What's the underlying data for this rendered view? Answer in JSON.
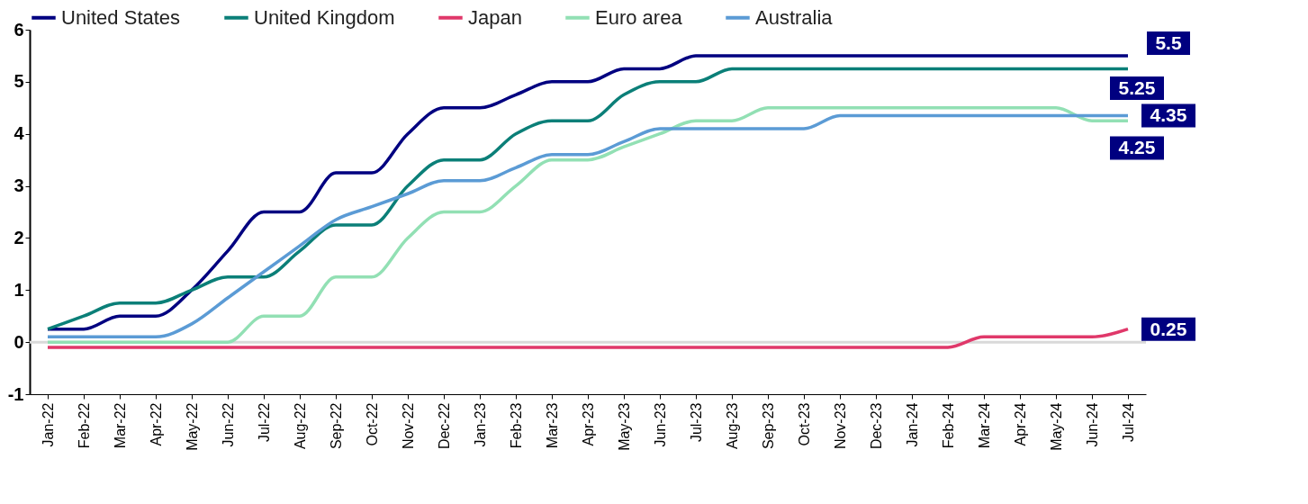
{
  "chart_data": {
    "type": "line",
    "categories": [
      "Jan-22",
      "Feb-22",
      "Mar-22",
      "Apr-22",
      "May-22",
      "Jun-22",
      "Jul-22",
      "Aug-22",
      "Sep-22",
      "Oct-22",
      "Nov-22",
      "Dec-22",
      "Jan-23",
      "Feb-23",
      "Mar-23",
      "Apr-23",
      "May-23",
      "Jun-23",
      "Jul-23",
      "Aug-23",
      "Sep-23",
      "Oct-23",
      "Nov-23",
      "Dec-23",
      "Jan-24",
      "Feb-24",
      "Mar-24",
      "Apr-24",
      "May-24",
      "Jun-24",
      "Jul-24"
    ],
    "series": [
      {
        "name": "United States",
        "color": "#000080",
        "values": [
          0.25,
          0.25,
          0.5,
          0.5,
          1,
          1.75,
          2.5,
          2.5,
          3.25,
          3.25,
          4,
          4.5,
          4.5,
          4.75,
          5,
          5,
          5.25,
          5.25,
          5.5,
          5.5,
          5.5,
          5.5,
          5.5,
          5.5,
          5.5,
          5.5,
          5.5,
          5.5,
          5.5,
          5.5,
          5.5
        ],
        "value_labels": [
          null,
          null,
          null,
          null,
          null,
          null,
          null,
          null,
          null,
          null,
          null,
          null,
          null,
          null,
          null,
          null,
          null,
          null,
          null,
          null,
          null,
          null,
          null,
          null,
          null,
          null,
          null,
          null,
          null,
          null,
          "5.5"
        ]
      },
      {
        "name": "United Kingdom",
        "color": "#0b7f78",
        "values": [
          0.25,
          0.5,
          0.75,
          0.75,
          1,
          1.25,
          1.25,
          1.75,
          2.25,
          2.25,
          3,
          3.5,
          3.5,
          4,
          4.25,
          4.25,
          4.75,
          5,
          5,
          5.25,
          5.25,
          5.25,
          5.25,
          5.25,
          5.25,
          5.25,
          5.25,
          5.25,
          5.25,
          5.25,
          5.25
        ],
        "value_labels": [
          null,
          null,
          null,
          null,
          null,
          null,
          null,
          null,
          null,
          null,
          null,
          null,
          null,
          null,
          null,
          null,
          null,
          null,
          null,
          null,
          null,
          null,
          null,
          null,
          null,
          null,
          null,
          null,
          null,
          null,
          "5.25"
        ]
      },
      {
        "name": "Japan",
        "color": "#e0386a",
        "values": [
          -0.1,
          -0.1,
          -0.1,
          -0.1,
          -0.1,
          -0.1,
          -0.1,
          -0.1,
          -0.1,
          -0.1,
          -0.1,
          -0.1,
          -0.1,
          -0.1,
          -0.1,
          -0.1,
          -0.1,
          -0.1,
          -0.1,
          -0.1,
          -0.1,
          -0.1,
          -0.1,
          -0.1,
          -0.1,
          -0.1,
          0.1,
          0.1,
          0.1,
          0.1,
          0.25
        ],
        "value_labels": [
          null,
          null,
          null,
          null,
          null,
          null,
          null,
          null,
          null,
          null,
          null,
          null,
          null,
          null,
          null,
          null,
          null,
          null,
          null,
          null,
          null,
          null,
          null,
          null,
          null,
          null,
          null,
          null,
          null,
          null,
          "0.25"
        ]
      },
      {
        "name": "Euro area",
        "color": "#92e0b4",
        "values": [
          0,
          0,
          0,
          0,
          0,
          0,
          0.5,
          0.5,
          1.25,
          1.25,
          2,
          2.5,
          2.5,
          3,
          3.5,
          3.5,
          3.75,
          4,
          4.25,
          4.25,
          4.5,
          4.5,
          4.5,
          4.5,
          4.5,
          4.5,
          4.5,
          4.5,
          4.5,
          4.25,
          4.25
        ],
        "value_labels": [
          null,
          null,
          null,
          null,
          null,
          null,
          null,
          null,
          null,
          null,
          null,
          null,
          null,
          null,
          null,
          null,
          null,
          null,
          null,
          null,
          null,
          null,
          null,
          null,
          null,
          null,
          null,
          null,
          null,
          null,
          "4.25"
        ]
      },
      {
        "name": "Australia",
        "color": "#5b9bd5",
        "values": [
          0.1,
          0.1,
          0.1,
          0.1,
          0.35,
          0.85,
          1.35,
          1.85,
          2.35,
          2.6,
          2.85,
          3.1,
          3.1,
          3.35,
          3.6,
          3.6,
          3.85,
          4.1,
          4.1,
          4.1,
          4.1,
          4.1,
          4.35,
          4.35,
          4.35,
          4.35,
          4.35,
          4.35,
          4.35,
          4.35,
          4.35
        ],
        "value_labels": [
          null,
          null,
          null,
          null,
          null,
          null,
          null,
          null,
          null,
          null,
          null,
          null,
          null,
          null,
          null,
          null,
          null,
          null,
          null,
          null,
          null,
          null,
          null,
          null,
          null,
          null,
          null,
          null,
          null,
          null,
          "4.35"
        ]
      }
    ],
    "ylim": [
      -1,
      6
    ],
    "yticks": [
      -1,
      0,
      1,
      2,
      3,
      4,
      5,
      6
    ],
    "ref_lines": [
      {
        "axis": "y",
        "value": 0,
        "color": "#d9d9d9"
      }
    ],
    "legend": "top",
    "grid": false,
    "marker": "none",
    "line_style": "solid"
  }
}
